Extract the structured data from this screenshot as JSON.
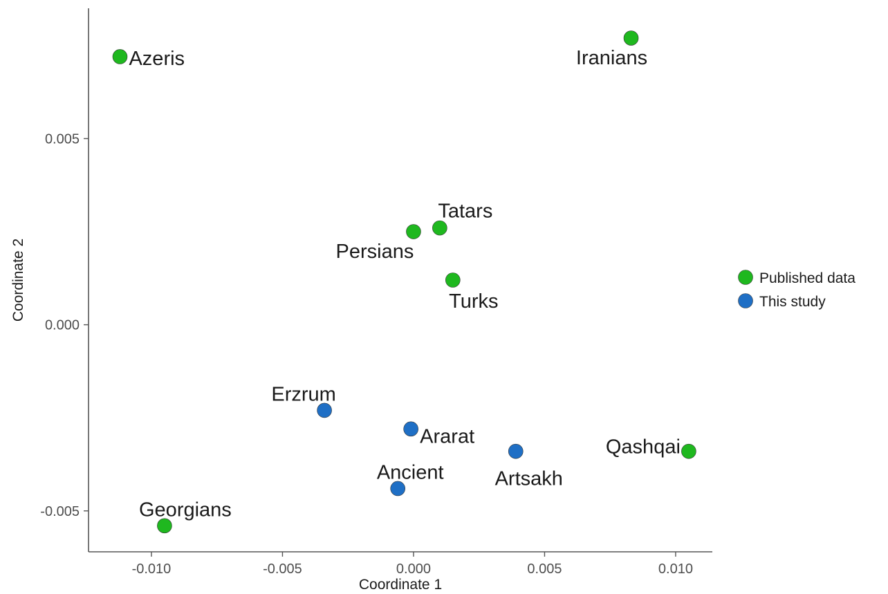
{
  "chart_data": {
    "type": "scatter",
    "xlabel": "Coordinate 1",
    "ylabel": "Coordinate 2",
    "xlim": [
      -0.0124,
      0.0114
    ],
    "ylim": [
      -0.0061,
      0.0085
    ],
    "x_ticks": [
      -0.01,
      -0.005,
      0.0,
      0.005,
      0.01
    ],
    "x_tick_labels": [
      "-0.010",
      "-0.005",
      "0.000",
      "0.005",
      "0.010"
    ],
    "y_ticks": [
      -0.005,
      0.0,
      0.005
    ],
    "y_tick_labels": [
      "-0.005",
      "0.000",
      "0.005"
    ],
    "grid": false,
    "legend_position": "right",
    "series": [
      {
        "name": "Published data",
        "color": "#1fb81f",
        "points": [
          {
            "label": "Azeris",
            "x": -0.0112,
            "y": 0.0072
          },
          {
            "label": "Iranians",
            "x": 0.0083,
            "y": 0.0077
          },
          {
            "label": "Tatars",
            "x": 0.001,
            "y": 0.0026
          },
          {
            "label": "Persians",
            "x": 0.0,
            "y": 0.0025
          },
          {
            "label": "Turks",
            "x": 0.0015,
            "y": 0.0012
          },
          {
            "label": "Qashqai",
            "x": 0.0105,
            "y": -0.0034
          },
          {
            "label": "Georgians",
            "x": -0.0095,
            "y": -0.0054
          }
        ]
      },
      {
        "name": "This study",
        "color": "#1f6fc5",
        "points": [
          {
            "label": "Erzrum",
            "x": -0.0034,
            "y": -0.0023
          },
          {
            "label": "Ararat",
            "x": -0.0001,
            "y": -0.0028
          },
          {
            "label": "Artsakh",
            "x": 0.0039,
            "y": -0.0034
          },
          {
            "label": "Ancient",
            "x": -0.0006,
            "y": -0.0044
          }
        ]
      }
    ]
  }
}
